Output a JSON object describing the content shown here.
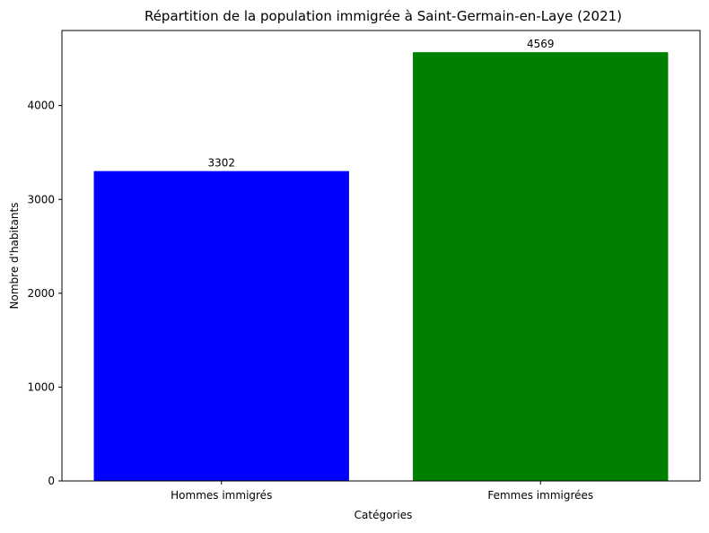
{
  "chart_data": {
    "type": "bar",
    "title": "Répartition de la population immigrée à Saint-Germain-en-Laye (2021)",
    "xlabel": "Catégories",
    "ylabel": "Nombre d'habitants",
    "categories": [
      "Hommes immigrés",
      "Femmes immigrées"
    ],
    "values": [
      3302,
      4569
    ],
    "value_labels": [
      "3302",
      "4569"
    ],
    "bar_colors": [
      "#0000ff",
      "#008000"
    ],
    "ylim": [
      0,
      4800
    ],
    "yticks": [
      0,
      1000,
      2000,
      3000,
      4000
    ],
    "ytick_labels": [
      "0",
      "1000",
      "2000",
      "3000",
      "4000"
    ],
    "grid": false,
    "legend": "none"
  }
}
